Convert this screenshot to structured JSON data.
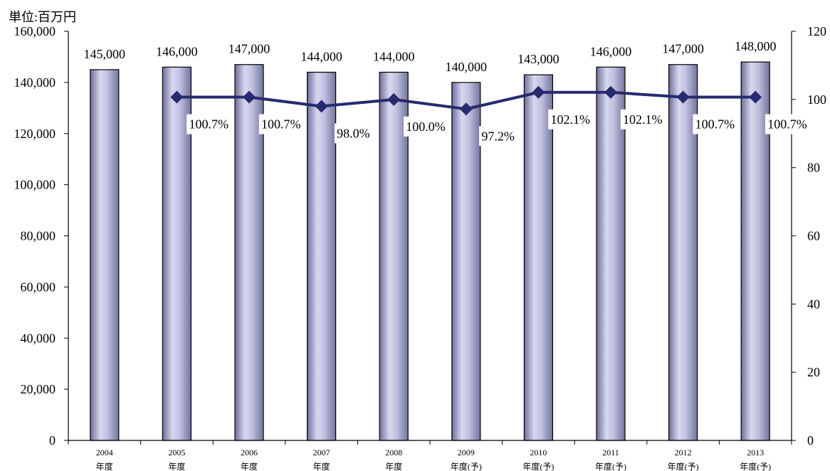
{
  "chart_data": {
    "type": "bar",
    "unit_label": "単位:百万円",
    "categories": [
      [
        "2004",
        "年度"
      ],
      [
        "2005",
        "年度"
      ],
      [
        "2006",
        "年度"
      ],
      [
        "2007",
        "年度"
      ],
      [
        "2008",
        "年度"
      ],
      [
        "2009",
        "年度(予)"
      ],
      [
        "2010",
        "年度(予)"
      ],
      [
        "2011",
        "年度(予)"
      ],
      [
        "2012",
        "年度(予)"
      ],
      [
        "2013",
        "年度(予)"
      ]
    ],
    "left_axis": {
      "ylim": [
        0,
        160000
      ],
      "ticks": [
        0,
        20000,
        40000,
        60000,
        80000,
        100000,
        120000,
        140000,
        160000
      ],
      "tick_labels": [
        "0",
        "20,000",
        "40,000",
        "60,000",
        "80,000",
        "100,000",
        "120,000",
        "140,000",
        "160,000"
      ]
    },
    "right_axis": {
      "ylim": [
        0,
        120
      ],
      "ticks": [
        0,
        20,
        40,
        60,
        80,
        100,
        120
      ],
      "tick_labels": [
        "0",
        "20",
        "40",
        "60",
        "80",
        "100",
        "120"
      ]
    },
    "series": [
      {
        "type": "bar",
        "axis": "left",
        "values": [
          145000,
          146000,
          147000,
          144000,
          144000,
          140000,
          143000,
          146000,
          147000,
          148000
        ],
        "data_labels": [
          "145,000",
          "146,000",
          "147,000",
          "144,000",
          "144,000",
          "140,000",
          "143,000",
          "146,000",
          "147,000",
          "148,000"
        ],
        "color": "#a8a8d0"
      },
      {
        "type": "line",
        "axis": "right",
        "values": [
          null,
          100.7,
          100.7,
          98.0,
          100.0,
          97.2,
          102.1,
          102.1,
          100.7,
          100.7
        ],
        "data_labels": [
          null,
          "100.7%",
          "100.7%",
          "98.0%",
          "100.0%",
          "97.2%",
          "102.1%",
          "102.1%",
          "100.7%",
          "100.7%"
        ],
        "color": "#262a6e"
      }
    ],
    "grid": false,
    "legend": "none"
  }
}
